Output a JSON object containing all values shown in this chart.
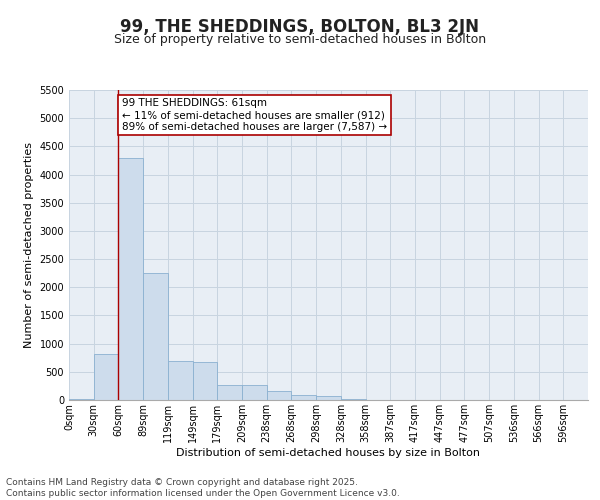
{
  "title": "99, THE SHEDDINGS, BOLTON, BL3 2JN",
  "subtitle": "Size of property relative to semi-detached houses in Bolton",
  "xlabel": "Distribution of semi-detached houses by size in Bolton",
  "ylabel": "Number of semi-detached properties",
  "bar_color": "#cddcec",
  "bar_edge_color": "#8ab0d0",
  "background_color": "#e8eef5",
  "grid_color": "#c8d4e0",
  "annotation_box_text": "99 THE SHEDDINGS: 61sqm\n← 11% of semi-detached houses are smaller (912)\n89% of semi-detached houses are larger (7,587) →",
  "property_sqm_bin": 2,
  "property_line_color": "#aa0000",
  "categories": [
    "0sqm",
    "30sqm",
    "60sqm",
    "89sqm",
    "119sqm",
    "149sqm",
    "179sqm",
    "209sqm",
    "238sqm",
    "268sqm",
    "298sqm",
    "328sqm",
    "358sqm",
    "387sqm",
    "417sqm",
    "447sqm",
    "477sqm",
    "507sqm",
    "536sqm",
    "566sqm",
    "596sqm"
  ],
  "values": [
    10,
    820,
    4300,
    2250,
    700,
    680,
    270,
    265,
    155,
    90,
    70,
    10,
    5,
    0,
    0,
    0,
    0,
    0,
    0,
    0,
    0
  ],
  "n_bins": 21,
  "ylim": [
    0,
    5500
  ],
  "yticks": [
    0,
    500,
    1000,
    1500,
    2000,
    2500,
    3000,
    3500,
    4000,
    4500,
    5000,
    5500
  ],
  "footer_text": "Contains HM Land Registry data © Crown copyright and database right 2025.\nContains public sector information licensed under the Open Government Licence v3.0.",
  "title_fontsize": 12,
  "subtitle_fontsize": 9,
  "annotation_fontsize": 7.5,
  "tick_fontsize": 7,
  "ylabel_fontsize": 8,
  "xlabel_fontsize": 8,
  "footer_fontsize": 6.5
}
